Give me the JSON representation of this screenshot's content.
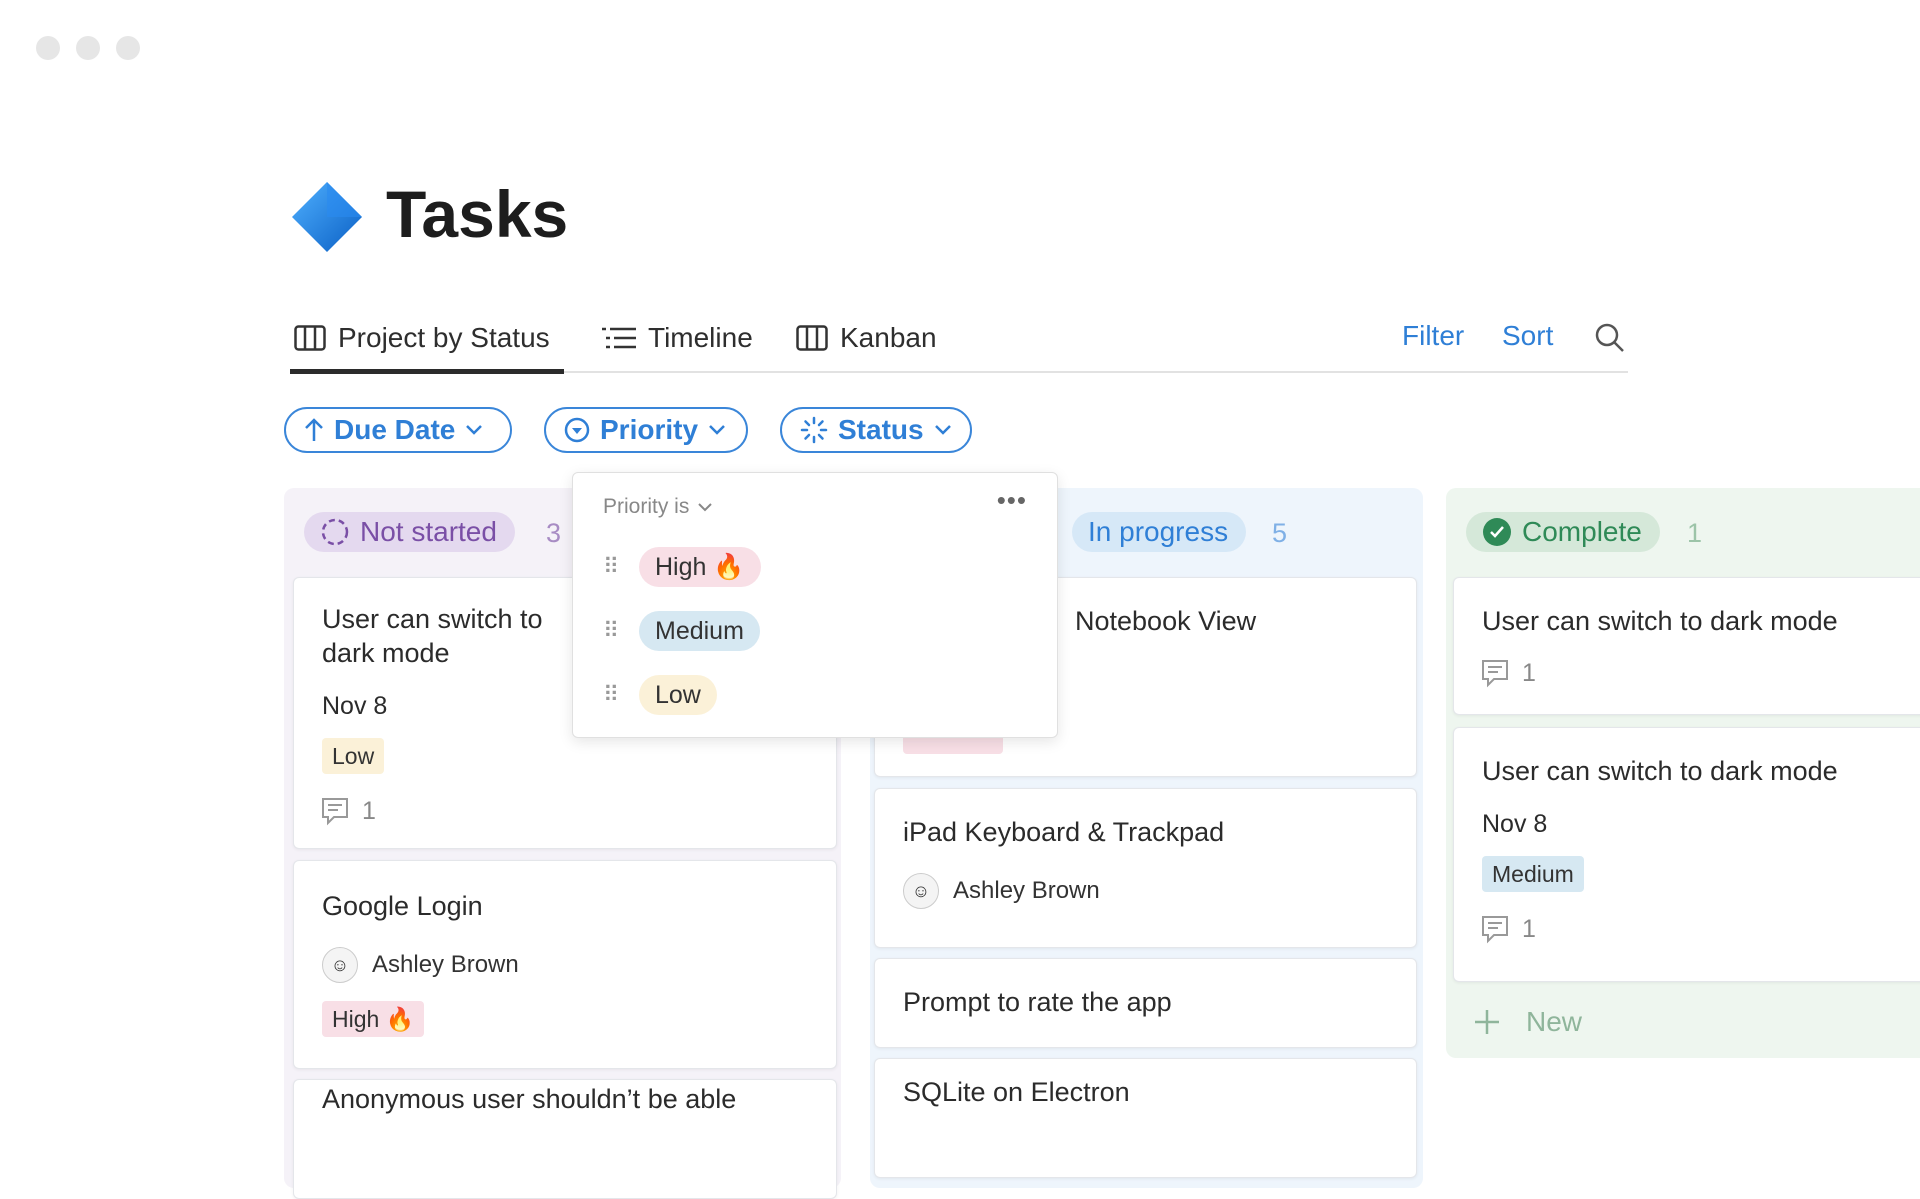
{
  "window": {
    "controls": [
      "close",
      "minimize",
      "maximize"
    ]
  },
  "page": {
    "title": "Tasks",
    "icon": "blue-diamond-icon"
  },
  "tabs": [
    {
      "label": "Project by Status",
      "icon": "board-icon",
      "active": true
    },
    {
      "label": "Timeline",
      "icon": "timeline-icon"
    },
    {
      "label": "Kanban",
      "icon": "board-icon"
    }
  ],
  "toolbar": {
    "filter": "Filter",
    "sort": "Sort",
    "search_icon": "search-icon"
  },
  "filters": [
    {
      "label": "Due Date",
      "icon": "arrow-up-icon"
    },
    {
      "label": "Priority",
      "icon": "circle-chevron-icon"
    },
    {
      "label": "Status",
      "icon": "status-spinner-icon"
    }
  ],
  "popover": {
    "header": "Priority is",
    "options": [
      {
        "label": "High 🔥",
        "color": "#f8dfe6"
      },
      {
        "label": "Medium",
        "color": "#d6e8f2"
      },
      {
        "label": "Low",
        "color": "#fbf1d8"
      }
    ]
  },
  "columns": [
    {
      "label": "Not started",
      "count": "3",
      "color": "#7a4fa6",
      "cards": [
        {
          "title": "User can switch to dark mode",
          "date": "Nov 8",
          "tag": "Low",
          "comments": "1"
        },
        {
          "title": "Google Login",
          "person": "Ashley Brown",
          "tag": "High 🔥"
        },
        {
          "title": "Anonymous user shouldn’t be able"
        }
      ]
    },
    {
      "label": "In progress",
      "count": "5",
      "color": "#2f7fd6",
      "cards": [
        {
          "title": "Notebook View"
        },
        {
          "title": "iPad Keyboard & Trackpad",
          "person": "Ashley Brown"
        },
        {
          "title": "Prompt to rate the app"
        },
        {
          "title": "SQLite on Electron"
        }
      ]
    },
    {
      "label": "Complete",
      "count": "1",
      "color": "#2f8a57",
      "cards": [
        {
          "title": "User can switch to dark mode",
          "comments": "1"
        },
        {
          "title": "User can switch to dark mode",
          "date": "Nov 8",
          "tag": "Medium",
          "comments": "1"
        }
      ],
      "new_label": "New"
    }
  ]
}
